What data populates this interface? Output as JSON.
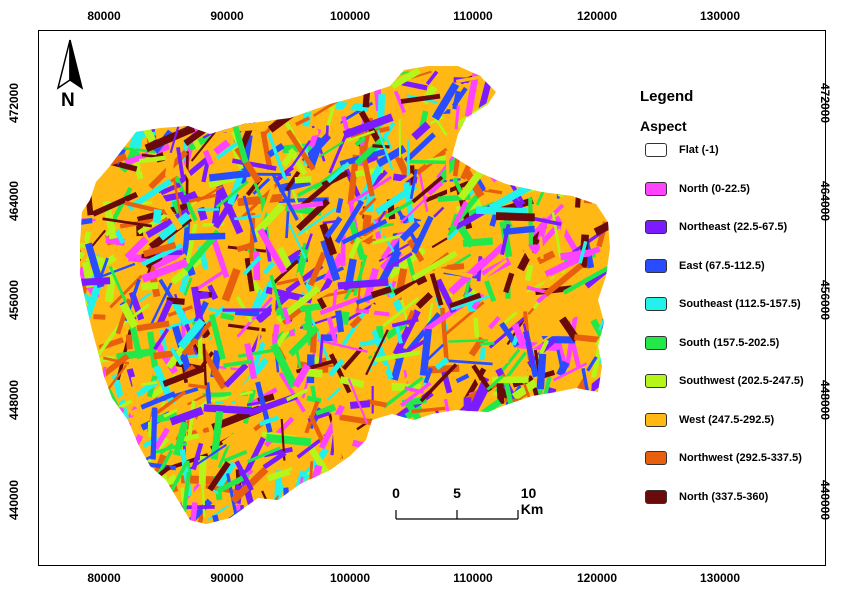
{
  "map": {
    "x_ticks": [
      "80000",
      "90000",
      "100000",
      "110000",
      "120000",
      "130000"
    ],
    "y_ticks": [
      "472000",
      "464000",
      "456000",
      "448000",
      "440000"
    ],
    "north_label": "N"
  },
  "legend": {
    "title": "Legend",
    "subtitle": "Aspect",
    "items": [
      {
        "label": "Flat (-1)",
        "color": "#ffffff"
      },
      {
        "label": "North (0-22.5)",
        "color": "#ff44ff"
      },
      {
        "label": "Northeast (22.5-67.5)",
        "color": "#7a1cff"
      },
      {
        "label": "East (67.5-112.5)",
        "color": "#2a4cff"
      },
      {
        "label": "Southeast (112.5-157.5)",
        "color": "#22f2ea"
      },
      {
        "label": "South (157.5-202.5)",
        "color": "#22e84a"
      },
      {
        "label": "Southwest (202.5-247.5)",
        "color": "#b6f51a"
      },
      {
        "label": "West (247.5-292.5)",
        "color": "#ffb814"
      },
      {
        "label": "Northwest (292.5-337.5)",
        "color": "#e8600e"
      },
      {
        "label": "North (337.5-360)",
        "color": "#6a0a0a"
      }
    ]
  },
  "scale": {
    "labels": [
      "0",
      "5",
      "10 Km"
    ]
  }
}
